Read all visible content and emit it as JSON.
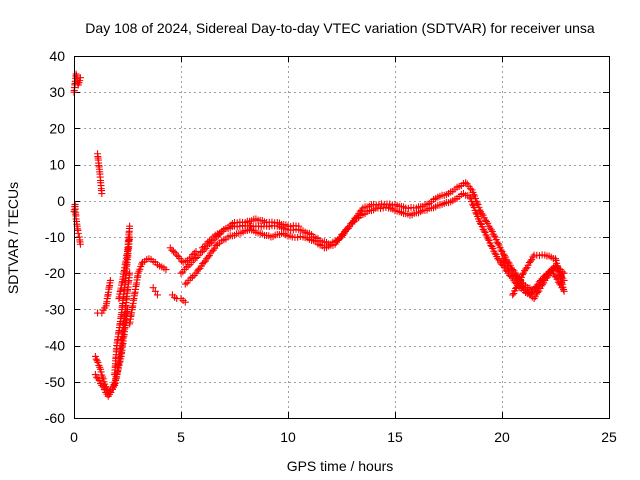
{
  "chart_data": {
    "type": "scatter",
    "title": "Day 108 of 2024, Sidereal Day-to-day VTEC variation (SDTVAR) for receiver unsa",
    "xlabel": "GPS time / hours",
    "ylabel": "SDTVAR / TECUs",
    "xlim": [
      0,
      25
    ],
    "ylim": [
      -60,
      40
    ],
    "xticks": [
      0,
      5,
      10,
      15,
      20,
      25
    ],
    "yticks": [
      -60,
      -50,
      -40,
      -30,
      -20,
      -10,
      0,
      10,
      20,
      30,
      40
    ],
    "grid": true,
    "marker": "+",
    "color": "#ff0000",
    "series": [
      {
        "name": "SDTVAR",
        "segments": [
          {
            "x": [
              0.0,
              0.1,
              0.2,
              0.3
            ],
            "y": [
              30,
              35,
              32,
              34
            ]
          },
          {
            "x": [
              0.0,
              0.05,
              0.1,
              0.15,
              0.2,
              0.25,
              0.3
            ],
            "y": [
              -3,
              -1,
              -5,
              -7,
              -9,
              -10,
              -12
            ]
          },
          {
            "x": [
              1.1,
              1.2,
              1.25,
              1.3
            ],
            "y": [
              13,
              8,
              5,
              2
            ]
          },
          {
            "x": [
              1.1,
              1.3,
              1.5,
              1.7
            ],
            "y": [
              -31,
              -31,
              -29,
              -22
            ]
          },
          {
            "x": [
              1.0,
              1.2,
              1.4,
              1.6,
              1.8,
              2.0,
              2.2,
              2.4,
              2.6
            ],
            "y": [
              -43,
              -46,
              -50,
              -53,
              -52,
              -48,
              -40,
              -30,
              -20
            ]
          },
          {
            "x": [
              1.0,
              1.3,
              1.6,
              1.9,
              2.2,
              2.5
            ],
            "y": [
              -48,
              -51,
              -54,
              -51,
              -43,
              -30
            ]
          },
          {
            "x": [
              1.9,
              2.0,
              2.2,
              2.4,
              2.6
            ],
            "y": [
              -48,
              -40,
              -32,
              -22,
              -10
            ]
          },
          {
            "x": [
              2.1,
              2.3,
              2.5,
              2.6
            ],
            "y": [
              -27,
              -21,
              -14,
              -7
            ]
          },
          {
            "x": [
              2.6,
              2.8,
              3.0,
              3.2,
              3.5,
              3.8,
              4.0,
              4.3
            ],
            "y": [
              -34,
              -27,
              -20,
              -17,
              -16,
              -17,
              -18,
              -19
            ]
          },
          {
            "x": [
              3.7,
              3.8,
              3.9
            ],
            "y": [
              -24,
              -25,
              -26
            ]
          },
          {
            "x": [
              4.6,
              4.8,
              5.0,
              5.2
            ],
            "y": [
              -26,
              -27,
              -27,
              -28
            ]
          },
          {
            "x": [
              4.5,
              4.8,
              5.1,
              5.4,
              5.7
            ],
            "y": [
              -13,
              -15,
              -17,
              -16,
              -14
            ]
          },
          {
            "x": [
              5.0,
              5.5,
              6.0,
              6.5,
              7.0,
              7.5,
              8.0,
              8.5,
              9.0,
              9.5,
              10.0,
              10.5,
              11.0,
              11.5,
              12.0,
              12.5,
              13.0,
              13.5,
              14.0,
              14.5,
              15.0,
              15.5,
              16.0,
              16.5,
              17.0,
              17.5,
              18.0,
              18.3,
              18.6,
              19.0,
              19.5,
              20.0,
              20.5,
              21.0,
              21.5,
              22.0,
              22.5,
              22.9
            ],
            "y": [
              -20,
              -17,
              -14,
              -11,
              -8,
              -7,
              -7,
              -7,
              -7,
              -7,
              -8,
              -8,
              -9,
              -11,
              -12,
              -10,
              -6,
              -2,
              -1,
              -1,
              -1,
              -2,
              -2,
              -1,
              1,
              2,
              4,
              5,
              3,
              -3,
              -8,
              -14,
              -19,
              -23,
              -25,
              -21,
              -18,
              -22
            ]
          },
          {
            "x": [
              5.2,
              5.7,
              6.2,
              6.7,
              7.2,
              7.7,
              8.2,
              8.7,
              9.2,
              9.7,
              10.2,
              10.7,
              11.2,
              11.7,
              12.2,
              12.7,
              13.2,
              13.7,
              14.2,
              14.7,
              15.2,
              15.7,
              16.2,
              16.7,
              17.2,
              17.7,
              18.2,
              18.5,
              18.9,
              19.3,
              19.8,
              20.3,
              20.8,
              21.3,
              21.8,
              22.3,
              22.8
            ],
            "y": [
              -23,
              -20,
              -16,
              -12,
              -10,
              -9,
              -8,
              -9,
              -10,
              -9,
              -10,
              -10,
              -11,
              -13,
              -12,
              -8,
              -5,
              -3,
              -2,
              -2,
              -3,
              -4,
              -3,
              -2,
              -1,
              0,
              2,
              1,
              -5,
              -10,
              -16,
              -20,
              -24,
              -26,
              -22,
              -19,
              -24
            ]
          },
          {
            "x": [
              6.0,
              6.5,
              7.0,
              7.5,
              8.0,
              8.5,
              9.0,
              9.5,
              10.0,
              10.5
            ],
            "y": [
              -13,
              -10,
              -8,
              -6,
              -6,
              -5,
              -6,
              -6,
              -7,
              -7
            ]
          },
          {
            "x": [
              20.5,
              21.0,
              21.5,
              22.0,
              22.5,
              22.9
            ],
            "y": [
              -26,
              -20,
              -15,
              -15,
              -16,
              -25
            ]
          },
          {
            "x": [
              20.0,
              20.5,
              21.0,
              21.5,
              22.0,
              22.5,
              22.9
            ],
            "y": [
              -16,
              -20,
              -24,
              -27,
              -22,
              -18,
              -20
            ]
          }
        ]
      }
    ]
  }
}
